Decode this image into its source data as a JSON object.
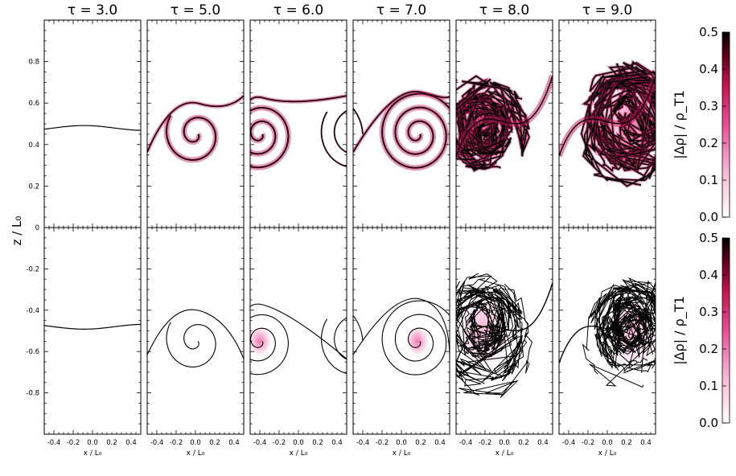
{
  "figure": {
    "titles": [
      "τ = 3.0",
      "τ = 5.0",
      "τ = 6.0",
      "τ = 7.0",
      "τ = 8.0",
      "τ = 9.0"
    ],
    "xlabel": "x / L₀",
    "ylabel": "z / L₀",
    "colorbar_label": "|Δρ| / ρ_T1"
  },
  "chart_data": {
    "type": "heatmap",
    "panels": "6 columns × 2 rows of density-difference maps with contour lines",
    "taus": [
      3.0,
      5.0,
      6.0,
      7.0,
      8.0,
      9.0
    ],
    "xlim": [
      -0.5,
      0.5
    ],
    "x_ticks": [
      "-0.4",
      "-0.2",
      "0.0",
      "0.2",
      "0.4"
    ],
    "top_row": {
      "ylim": [
        0.0,
        1.0
      ],
      "y_ticks": [
        "0",
        "0.2",
        "0.4",
        "0.6",
        "0.8"
      ]
    },
    "bottom_row": {
      "ylim": [
        -1.0,
        0.0
      ],
      "y_ticks": [
        "-0.2",
        "-0.4",
        "-0.6",
        "-0.8"
      ]
    },
    "colorbar": {
      "range": [
        0.0,
        0.5
      ],
      "ticks": [
        "0.0",
        "0.1",
        "0.2",
        "0.3",
        "0.4",
        "0.5"
      ],
      "colors": [
        "#ffffff",
        "#f57ab4",
        "#d4115e",
        "#5a0018",
        "#000000"
      ]
    }
  }
}
